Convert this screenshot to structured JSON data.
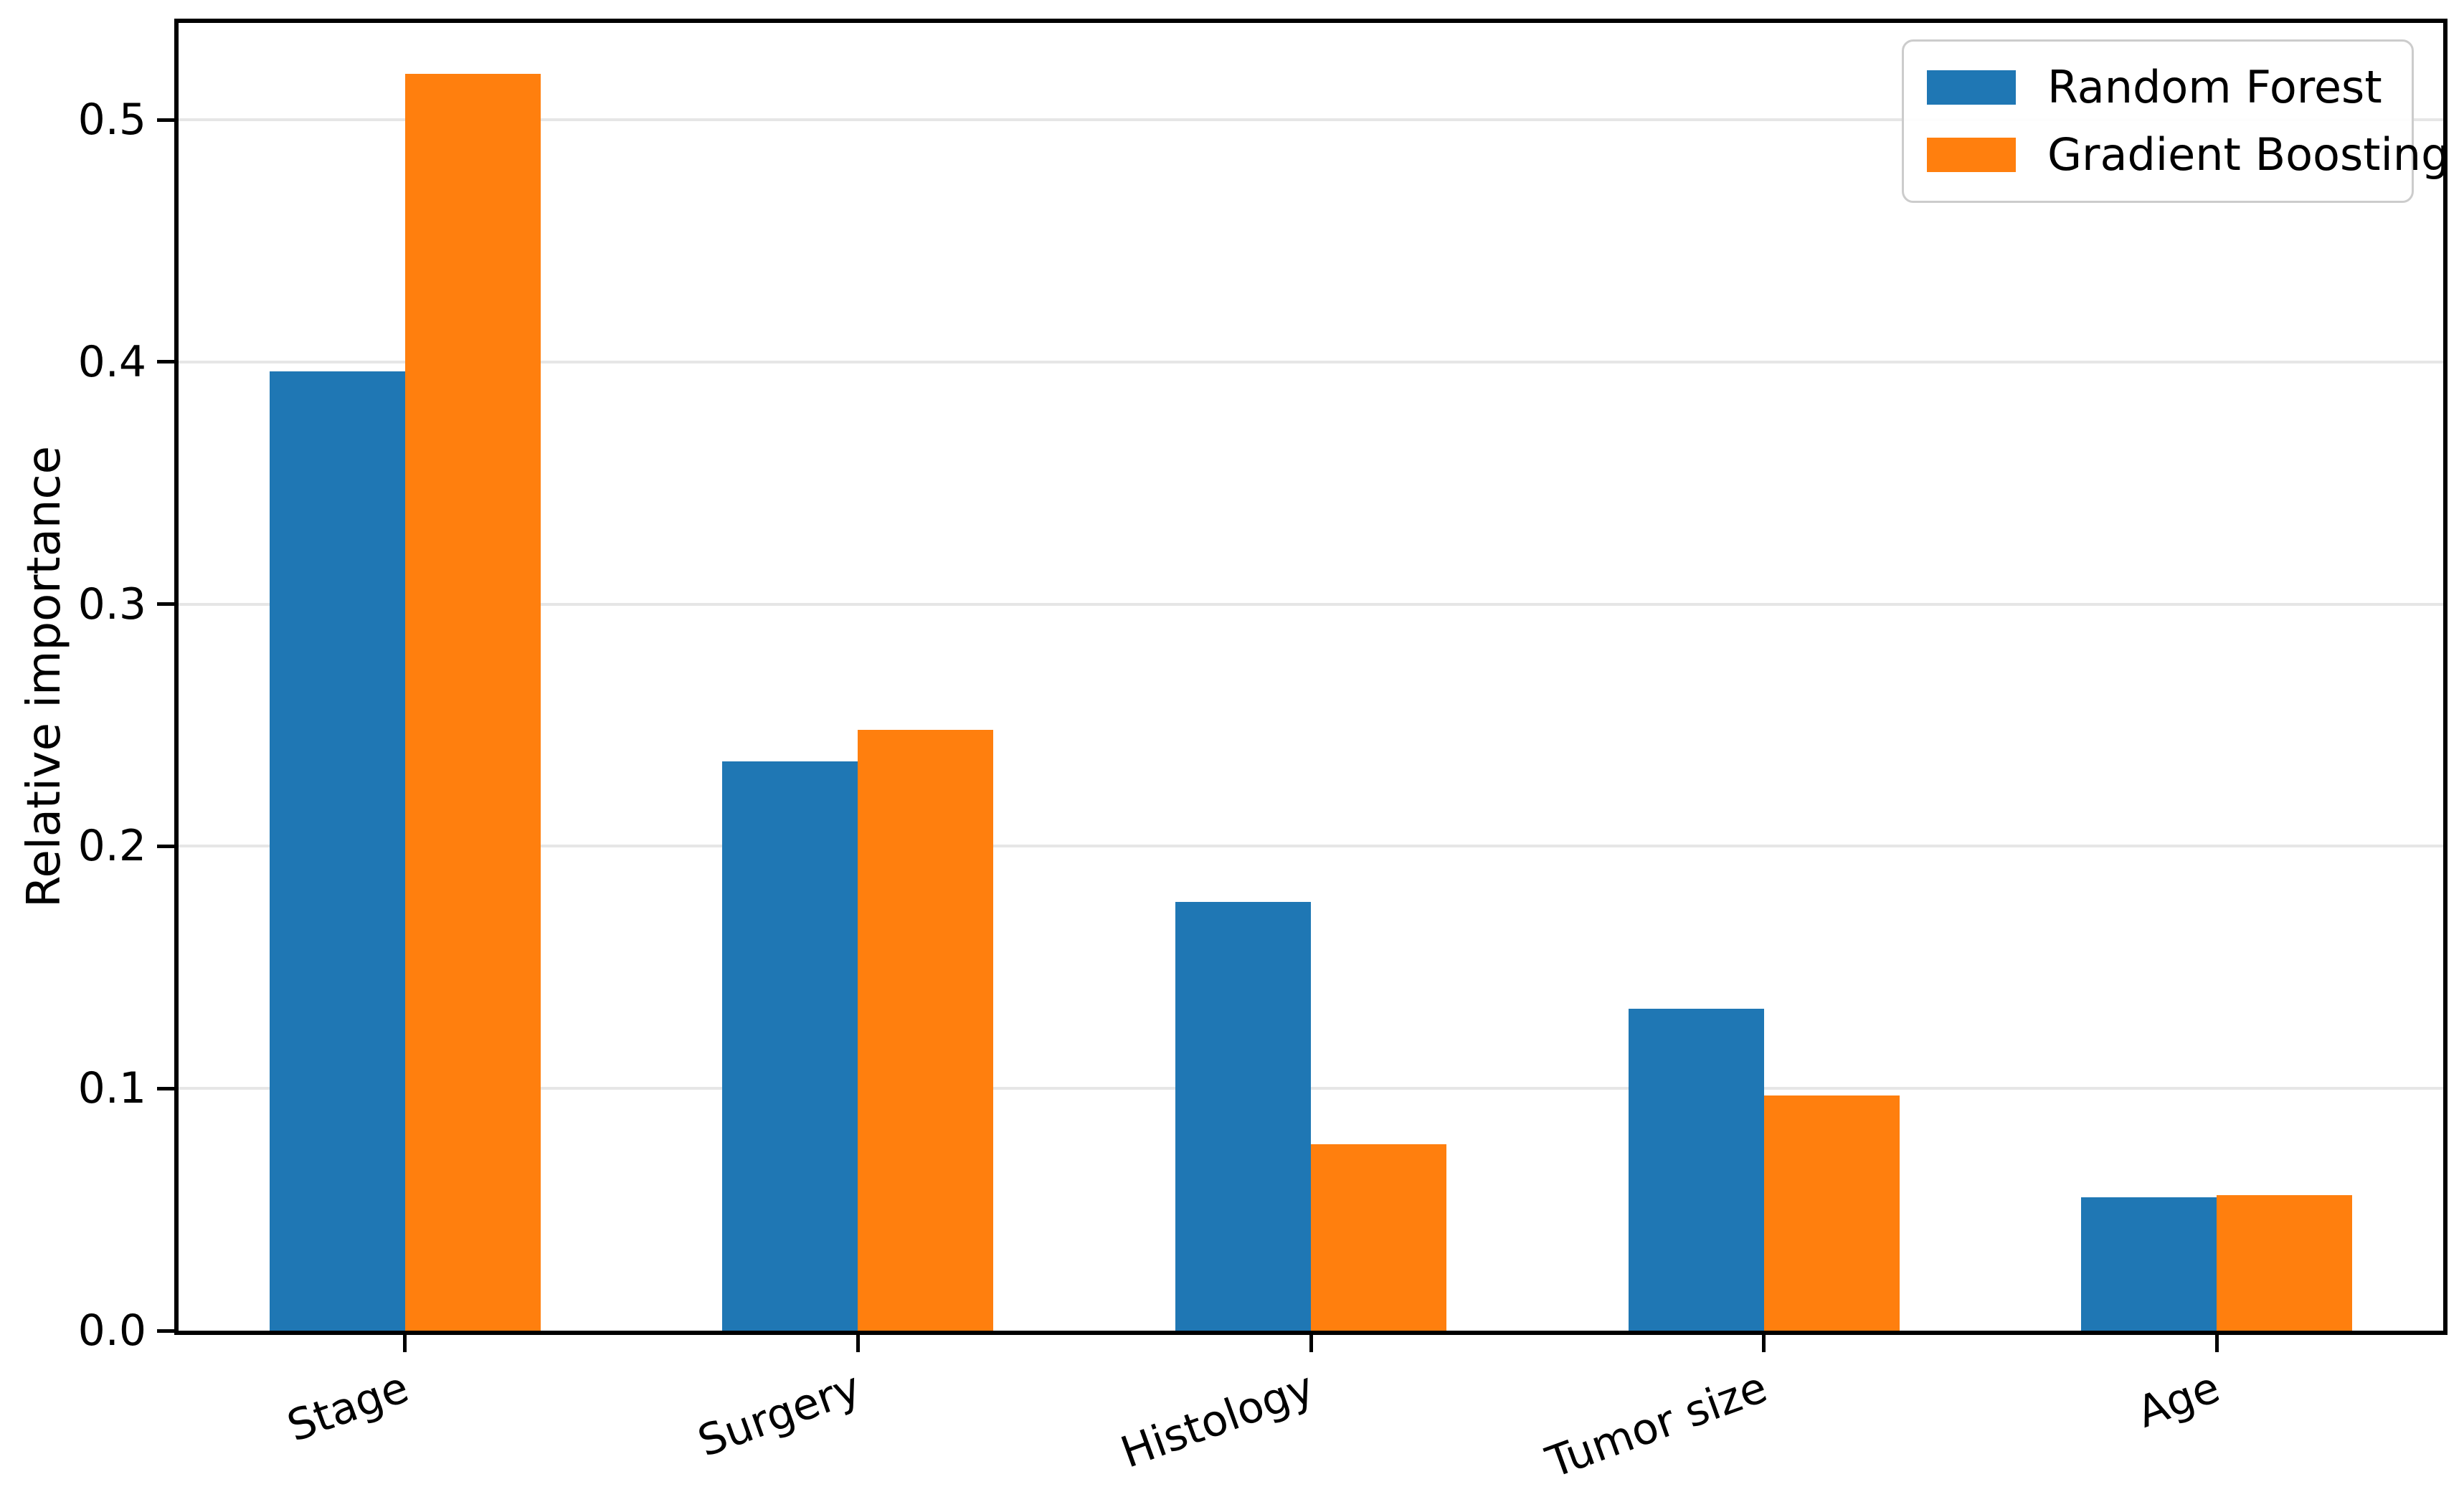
{
  "figure": {
    "background": "#ffffff",
    "frame_color": "#000000"
  },
  "y_axis": {
    "title": "Relative importance",
    "tick_labels": [
      "0.0",
      "0.1",
      "0.2",
      "0.3",
      "0.4",
      "0.5"
    ]
  },
  "legend": {
    "items": [
      {
        "label": "Random Forest",
        "color": "#1f77b4"
      },
      {
        "label": "Gradient Boosting",
        "color": "#ff7f0e"
      }
    ]
  },
  "chart_data": {
    "type": "bar",
    "categories": [
      "Stage",
      "Surgery",
      "Histology",
      "Tumor size",
      "Age"
    ],
    "series": [
      {
        "name": "Random Forest",
        "color": "#1f77b4",
        "values": [
          0.396,
          0.235,
          0.177,
          0.133,
          0.055
        ]
      },
      {
        "name": "Gradient Boosting",
        "color": "#ff7f0e",
        "values": [
          0.519,
          0.248,
          0.077,
          0.097,
          0.056
        ]
      }
    ],
    "title": "",
    "xlabel": "",
    "ylabel": "Relative importance",
    "ylim": [
      0,
      0.54
    ],
    "ytick_values": [
      0.0,
      0.1,
      0.2,
      0.3,
      0.4,
      0.5
    ],
    "grid": true,
    "grid_color": "#e6e6e6",
    "grid_axis": "y",
    "legend_position": "upper right",
    "xtick_rotation_deg": 20,
    "bar_width_fraction": 0.3,
    "axis_color": "#000000"
  }
}
